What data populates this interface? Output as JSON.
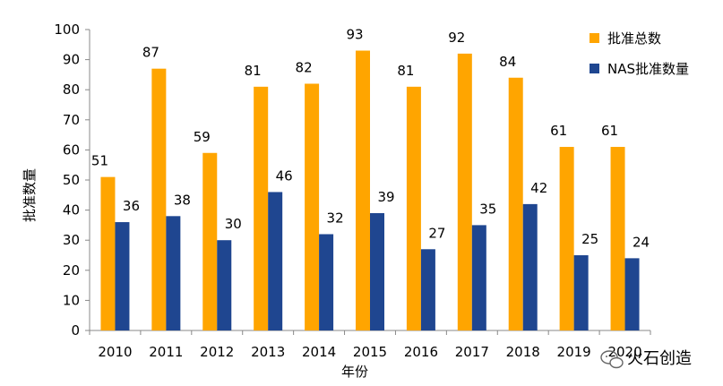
{
  "chart_data": {
    "type": "bar",
    "title": "",
    "xlabel": "年份",
    "ylabel": "批准数量",
    "categories": [
      "2010",
      "2011",
      "2012",
      "2013",
      "2014",
      "2015",
      "2016",
      "2017",
      "2018",
      "2019",
      "2020"
    ],
    "series": [
      {
        "name": "批准总数",
        "color": "#FFA500",
        "values": [
          51,
          87,
          59,
          81,
          82,
          93,
          81,
          92,
          84,
          61,
          61
        ]
      },
      {
        "name": "NAS批准数量",
        "color": "#1F4690",
        "values": [
          36,
          38,
          30,
          46,
          32,
          39,
          27,
          35,
          42,
          25,
          24
        ]
      }
    ],
    "ylim": [
      0,
      100
    ],
    "yticks": [
      0,
      10,
      20,
      30,
      40,
      50,
      60,
      70,
      80,
      90,
      100
    ],
    "grid": false,
    "legend": "top-right"
  },
  "watermark": {
    "text": "火石创造"
  }
}
